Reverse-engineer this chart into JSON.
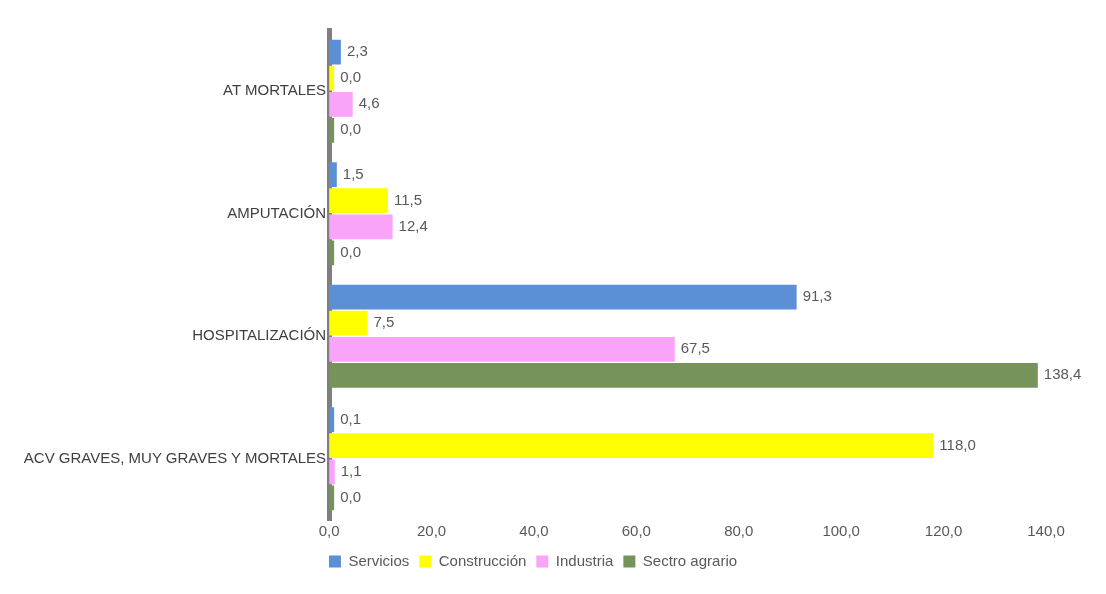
{
  "chart_data": {
    "type": "bar",
    "orientation": "horizontal",
    "categories": [
      "AT MORTALES",
      "AMPUTACIÓN",
      "HOSPITALIZACIÓN",
      "ACV GRAVES, MUY GRAVES Y MORTALES"
    ],
    "series": [
      {
        "name": "Servicios",
        "color": "#5b8fd6",
        "values": [
          2.3,
          1.5,
          91.3,
          0.1
        ],
        "value_labels": [
          "2,3",
          "1,5",
          "91,3",
          "0,1"
        ]
      },
      {
        "name": "Construcción",
        "color": "#ffff00",
        "values": [
          0.0,
          11.5,
          7.5,
          118.0
        ],
        "value_labels": [
          "0,0",
          "11,5",
          "7,5",
          "118,0"
        ]
      },
      {
        "name": "Industria",
        "color": "#f9a3f9",
        "values": [
          4.6,
          12.4,
          67.5,
          1.1
        ],
        "value_labels": [
          "4,6",
          "12,4",
          "67,5",
          "1,1"
        ]
      },
      {
        "name": "Sectro agrario",
        "color": "#76935a",
        "values": [
          0.0,
          0.0,
          138.4,
          0.0
        ],
        "value_labels": [
          "0,0",
          "0,0",
          "138,4",
          "0,0"
        ]
      }
    ],
    "xlim": [
      0,
      140
    ],
    "xticks": [
      {
        "value": 0,
        "label": "0,0"
      },
      {
        "value": 20,
        "label": "20,0"
      },
      {
        "value": 40,
        "label": "40,0"
      },
      {
        "value": 60,
        "label": "60,0"
      },
      {
        "value": 80,
        "label": "80,0"
      },
      {
        "value": 100,
        "label": "100,0"
      },
      {
        "value": 120,
        "label": "120,0"
      },
      {
        "value": 140,
        "label": "140,0"
      }
    ],
    "grid": false,
    "legend": "bottom"
  }
}
